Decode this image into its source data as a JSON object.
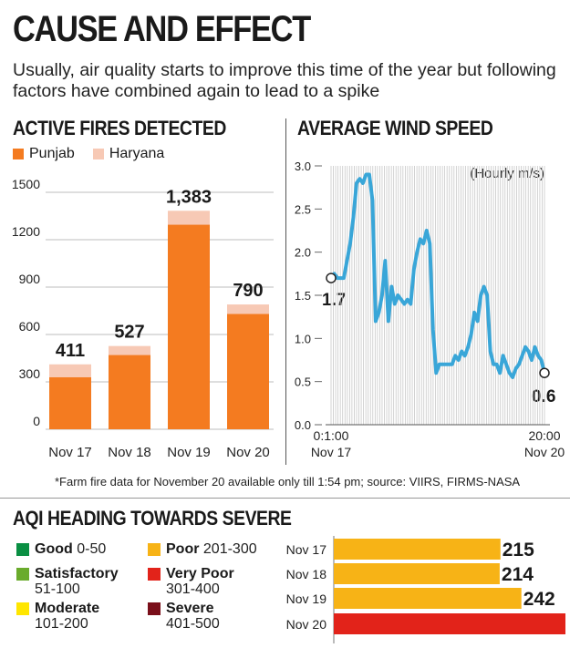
{
  "title": "CAUSE AND EFFECT",
  "subtitle": "Usually, air quality starts to improve this time of the year but following factors have combined again to lead to a spike",
  "fires": {
    "heading": "ACTIVE FIRES DETECTED",
    "legend": [
      {
        "label": "Punjab",
        "color": "#f47b20"
      },
      {
        "label": "Haryana",
        "color": "#f7c9b5"
      }
    ]
  },
  "wind": {
    "heading": "AVERAGE WIND SPEED",
    "unit_label": "(Hourly m/s)",
    "start_label": "1.7",
    "end_label": "0.6",
    "x_start_time": "0:1:00",
    "x_start_date": "Nov 17",
    "x_end_time": "20:00",
    "x_end_date": "Nov 20"
  },
  "footnote": "*Farm fire data for November 20 available only till 1:54 pm; source: VIIRS, FIRMS-NASA",
  "aqi": {
    "heading": "AQI HEADING TOWARDS SEVERE",
    "categories": [
      {
        "name": "Good",
        "range": "0-50",
        "color": "#0a8f43"
      },
      {
        "name": "Satisfactory",
        "range": "51-100",
        "color": "#6aab2c"
      },
      {
        "name": "Moderate",
        "range": "101-200",
        "color": "#ffe600"
      },
      {
        "name": "Poor",
        "range": "201-300",
        "color": "#f7b316"
      },
      {
        "name": "Very Poor",
        "range": "301-400",
        "color": "#e2231a"
      },
      {
        "name": "Severe",
        "range": "401-500",
        "color": "#7a0f1a"
      }
    ]
  },
  "chart_data": [
    {
      "type": "bar",
      "title": "ACTIVE FIRES DETECTED",
      "categories": [
        "Nov 17",
        "Nov 18",
        "Nov 19",
        "Nov 20"
      ],
      "series": [
        {
          "name": "Punjab",
          "values": [
            330,
            470,
            1295,
            730
          ]
        },
        {
          "name": "Haryana",
          "values": [
            81,
            57,
            88,
            60
          ]
        }
      ],
      "totals": [
        "411",
        "527",
        "1,383",
        "790"
      ],
      "yticks": [
        "0",
        "300",
        "600",
        "900",
        "1200",
        "1500"
      ],
      "ylim": [
        0,
        1500
      ],
      "grid": true,
      "legend": "top-left"
    },
    {
      "type": "line",
      "title": "AVERAGE WIND SPEED",
      "ylabel": "(Hourly m/s)",
      "yticks": [
        "0.0",
        "0.5",
        "1.0",
        "1.5",
        "2.0",
        "2.5",
        "3.0"
      ],
      "ylim": [
        0,
        3.0
      ],
      "x_unit": "hours from Nov 17 0:1:00 to Nov 20 20:00",
      "values": [
        1.7,
        1.75,
        1.7,
        1.7,
        1.7,
        1.9,
        2.1,
        2.4,
        2.8,
        2.85,
        2.8,
        2.9,
        2.9,
        2.6,
        1.2,
        1.3,
        1.5,
        1.9,
        1.2,
        1.6,
        1.4,
        1.5,
        1.45,
        1.4,
        1.45,
        1.4,
        1.8,
        2.0,
        2.15,
        2.1,
        2.25,
        2.1,
        1.1,
        0.6,
        0.7,
        0.7,
        0.7,
        0.7,
        0.7,
        0.8,
        0.75,
        0.85,
        0.8,
        0.9,
        1.05,
        1.3,
        1.2,
        1.5,
        1.6,
        1.5,
        0.85,
        0.7,
        0.7,
        0.6,
        0.8,
        0.7,
        0.6,
        0.55,
        0.65,
        0.7,
        0.8,
        0.9,
        0.85,
        0.75,
        0.9,
        0.8,
        0.75,
        0.6
      ],
      "annotations": [
        "1.7",
        "0.6"
      ],
      "grid": true
    },
    {
      "type": "bar",
      "title": "AQI HEADING TOWARDS SEVERE",
      "orientation": "horizontal",
      "categories": [
        "Nov 17",
        "Nov 18",
        "Nov 19",
        "Nov 20"
      ],
      "values": [
        215,
        214,
        242,
        301
      ],
      "colors": [
        "#f7b316",
        "#f7b316",
        "#f7b316",
        "#e2231a"
      ]
    }
  ]
}
